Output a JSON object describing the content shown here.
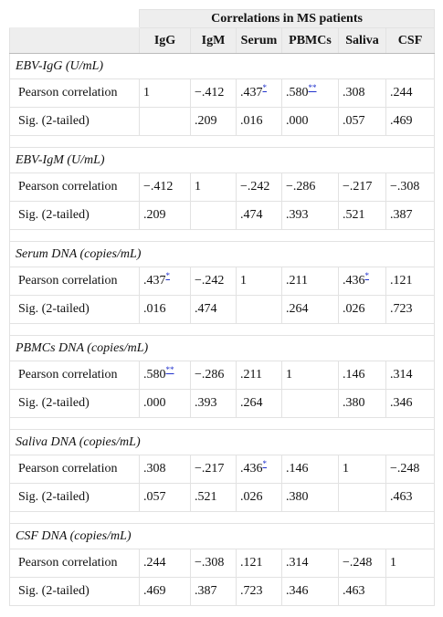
{
  "header": {
    "group": "Correlations in MS patients",
    "columns": [
      "IgG",
      "IgM",
      "Serum",
      "PBMCs",
      "Saliva",
      "CSF"
    ]
  },
  "sections": [
    {
      "title": "EBV-IgG (U/mL)",
      "rows": [
        {
          "label": "Pearson correlation",
          "cells": [
            "1",
            "−.412",
            {
              "text": ".437",
              "sup": "*"
            },
            {
              "text": ".580",
              "sup": "**"
            },
            ".308",
            ".244"
          ]
        },
        {
          "label": "Sig. (2-tailed)",
          "cells": [
            null,
            ".209",
            ".016",
            ".000",
            ".057",
            ".469"
          ]
        }
      ]
    },
    {
      "title": "EBV-IgM (U/mL)",
      "rows": [
        {
          "label": "Pearson correlation",
          "cells": [
            "−.412",
            "1",
            "−.242",
            "−.286",
            "−.217",
            "−.308"
          ]
        },
        {
          "label": "Sig. (2-tailed)",
          "cells": [
            ".209",
            null,
            ".474",
            ".393",
            ".521",
            ".387"
          ]
        }
      ]
    },
    {
      "title": "Serum DNA (copies/mL)",
      "rows": [
        {
          "label": "Pearson correlation",
          "cells": [
            {
              "text": ".437",
              "sup": "*"
            },
            "−.242",
            "1",
            ".211",
            {
              "text": ".436",
              "sup": "*"
            },
            ".121"
          ]
        },
        {
          "label": "Sig. (2-tailed)",
          "cells": [
            ".016",
            ".474",
            null,
            ".264",
            ".026",
            ".723"
          ]
        }
      ]
    },
    {
      "title": "PBMCs DNA (copies/mL)",
      "rows": [
        {
          "label": "Pearson correlation",
          "cells": [
            {
              "text": ".580",
              "sup": "**"
            },
            "−.286",
            ".211",
            "1",
            ".146",
            ".314"
          ]
        },
        {
          "label": "Sig. (2-tailed)",
          "cells": [
            ".000",
            ".393",
            ".264",
            null,
            ".380",
            ".346"
          ]
        }
      ]
    },
    {
      "title": "Saliva DNA (copies/mL)",
      "rows": [
        {
          "label": "Pearson correlation",
          "cells": [
            ".308",
            "−.217",
            {
              "text": ".436",
              "sup": "*"
            },
            ".146",
            "1",
            "−.248"
          ]
        },
        {
          "label": "Sig. (2-tailed)",
          "cells": [
            ".057",
            ".521",
            ".026",
            ".380",
            null,
            ".463"
          ]
        }
      ]
    },
    {
      "title": "CSF DNA (copies/mL)",
      "rows": [
        {
          "label": "Pearson correlation",
          "cells": [
            ".244",
            "−.308",
            ".121",
            ".314",
            "−.248",
            "1"
          ]
        },
        {
          "label": "Sig. (2-tailed)",
          "cells": [
            ".469",
            ".387",
            ".723",
            ".346",
            ".463",
            null
          ]
        }
      ]
    }
  ]
}
